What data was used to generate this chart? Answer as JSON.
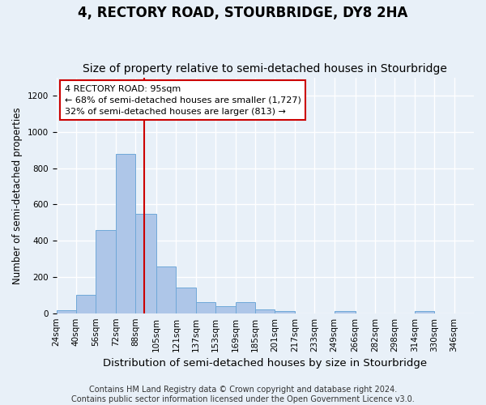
{
  "title": "4, RECTORY ROAD, STOURBRIDGE, DY8 2HA",
  "subtitle": "Size of property relative to semi-detached houses in Stourbridge",
  "xlabel": "Distribution of semi-detached houses by size in Stourbridge",
  "ylabel": "Number of semi-detached properties",
  "bin_labels": [
    "24sqm",
    "40sqm",
    "56sqm",
    "72sqm",
    "88sqm",
    "105sqm",
    "121sqm",
    "137sqm",
    "153sqm",
    "169sqm",
    "185sqm",
    "201sqm",
    "217sqm",
    "233sqm",
    "249sqm",
    "266sqm",
    "282sqm",
    "298sqm",
    "314sqm",
    "330sqm",
    "346sqm"
  ],
  "bin_edges": [
    24,
    40,
    56,
    72,
    88,
    105,
    121,
    137,
    153,
    169,
    185,
    201,
    217,
    233,
    249,
    266,
    282,
    298,
    314,
    330,
    346
  ],
  "bar_heights": [
    15,
    100,
    460,
    880,
    550,
    260,
    140,
    60,
    40,
    60,
    20,
    10,
    0,
    0,
    10,
    0,
    0,
    0,
    10,
    0,
    0
  ],
  "bar_color": "#aec6e8",
  "bar_edgecolor": "#6fa8d8",
  "property_size": 95,
  "property_line_color": "#cc0000",
  "annotation_line1": "4 RECTORY ROAD: 95sqm",
  "annotation_line2": "← 68% of semi-detached houses are smaller (1,727)",
  "annotation_line3": "32% of semi-detached houses are larger (813) →",
  "annotation_box_color": "#ffffff",
  "annotation_border_color": "#cc0000",
  "footer_text": "Contains HM Land Registry data © Crown copyright and database right 2024.\nContains public sector information licensed under the Open Government Licence v3.0.",
  "ylim": [
    0,
    1300
  ],
  "yticks": [
    0,
    200,
    400,
    600,
    800,
    1000,
    1200
  ],
  "background_color": "#e8f0f8",
  "grid_color": "#ffffff",
  "title_fontsize": 12,
  "subtitle_fontsize": 10,
  "ylabel_fontsize": 8.5,
  "xlabel_fontsize": 9.5,
  "tick_fontsize": 7.5,
  "footer_fontsize": 7
}
